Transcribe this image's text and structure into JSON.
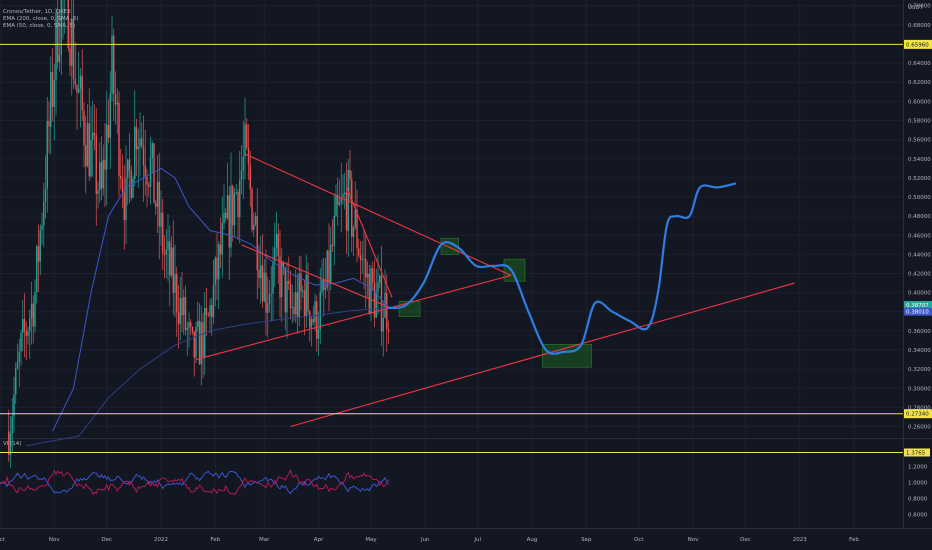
{
  "legend": {
    "title": "Cronos/Tether, 1D, OKEX",
    "ema200": "EMA (200, close, 0, SMA, 5)",
    "ema50": "EMA (50, close, 0, SMA, 5)",
    "vi": "VI (14)"
  },
  "currency": "USDT",
  "colors": {
    "background": "#131722",
    "up": "#26a69a",
    "down": "#ef5350",
    "ema200": "#2f3f86",
    "ema50": "#3d58c4",
    "projection": "#2f7de1",
    "trend": "#f23645",
    "level": "#f2e34a",
    "box": "#1b5e20",
    "vi_plus": "#3b5bdb",
    "vi_minus": "#c2185b"
  },
  "chart_data": [
    {
      "type": "candlestick",
      "x_ticks": [
        "Oct",
        "Nov",
        "Dec",
        "2022",
        "Feb",
        "Mar",
        "Apr",
        "May",
        "Jun",
        "Jul",
        "Aug",
        "Sep",
        "Oct",
        "Nov",
        "Dec",
        "2023",
        "Feb"
      ],
      "y_ticks": [
        "0.70000",
        "0.68000",
        "0.64000",
        "0.62000",
        "0.60000",
        "0.58000",
        "0.56000",
        "0.54000",
        "0.52000",
        "0.50000",
        "0.48000",
        "0.46000",
        "0.44000",
        "0.42000",
        "0.40000",
        "0.38000",
        "0.36000",
        "0.34000",
        "0.32000",
        "0.30000",
        "0.28000",
        "0.26000"
      ],
      "ylim": [
        0.248,
        0.706
      ],
      "levels": [
        {
          "value": 0.6596,
          "label": "0.65960"
        },
        {
          "value": 0.2734,
          "label": "0.27340"
        }
      ],
      "price_badges": [
        {
          "value": 0.38707,
          "label": "0.38707",
          "color": "#26a69a"
        },
        {
          "value": 0.3801,
          "label": "0.38010",
          "color": "#3d58c4"
        }
      ],
      "anchors": [
        {
          "d": 5,
          "p": 0.255
        },
        {
          "d": 12,
          "p": 0.34
        },
        {
          "d": 20,
          "p": 0.4
        },
        {
          "d": 33,
          "p": 0.68
        },
        {
          "d": 38,
          "p": 0.72
        },
        {
          "d": 44,
          "p": 0.61
        },
        {
          "d": 50,
          "p": 0.56
        },
        {
          "d": 58,
          "p": 0.5
        },
        {
          "d": 64,
          "p": 0.63
        },
        {
          "d": 72,
          "p": 0.49
        },
        {
          "d": 78,
          "p": 0.58
        },
        {
          "d": 86,
          "p": 0.53
        },
        {
          "d": 94,
          "p": 0.44
        },
        {
          "d": 104,
          "p": 0.38
        },
        {
          "d": 110,
          "p": 0.335
        },
        {
          "d": 118,
          "p": 0.36
        },
        {
          "d": 126,
          "p": 0.44
        },
        {
          "d": 134,
          "p": 0.5
        },
        {
          "d": 140,
          "p": 0.54
        },
        {
          "d": 146,
          "p": 0.47
        },
        {
          "d": 152,
          "p": 0.4
        },
        {
          "d": 158,
          "p": 0.43
        },
        {
          "d": 166,
          "p": 0.38
        },
        {
          "d": 174,
          "p": 0.4
        },
        {
          "d": 180,
          "p": 0.37
        },
        {
          "d": 186,
          "p": 0.4
        },
        {
          "d": 192,
          "p": 0.47
        },
        {
          "d": 198,
          "p": 0.5
        },
        {
          "d": 204,
          "p": 0.46
        },
        {
          "d": 210,
          "p": 0.41
        },
        {
          "d": 216,
          "p": 0.39
        },
        {
          "d": 222,
          "p": 0.385
        }
      ],
      "ema200": [
        {
          "d": 15,
          "p": 0.24
        },
        {
          "d": 45,
          "p": 0.25
        },
        {
          "d": 62,
          "p": 0.29
        },
        {
          "d": 80,
          "p": 0.32
        },
        {
          "d": 100,
          "p": 0.345
        },
        {
          "d": 120,
          "p": 0.36
        },
        {
          "d": 140,
          "p": 0.367
        },
        {
          "d": 160,
          "p": 0.372
        },
        {
          "d": 180,
          "p": 0.376
        },
        {
          "d": 200,
          "p": 0.381
        },
        {
          "d": 222,
          "p": 0.384
        }
      ],
      "ema50": [
        {
          "d": 30,
          "p": 0.255
        },
        {
          "d": 42,
          "p": 0.3
        },
        {
          "d": 52,
          "p": 0.4
        },
        {
          "d": 62,
          "p": 0.48
        },
        {
          "d": 72,
          "p": 0.51
        },
        {
          "d": 82,
          "p": 0.52
        },
        {
          "d": 92,
          "p": 0.53
        },
        {
          "d": 100,
          "p": 0.52
        },
        {
          "d": 108,
          "p": 0.49
        },
        {
          "d": 120,
          "p": 0.465
        },
        {
          "d": 132,
          "p": 0.46
        },
        {
          "d": 144,
          "p": 0.45
        },
        {
          "d": 156,
          "p": 0.432
        },
        {
          "d": 168,
          "p": 0.418
        },
        {
          "d": 180,
          "p": 0.408
        },
        {
          "d": 192,
          "p": 0.41
        },
        {
          "d": 202,
          "p": 0.415
        },
        {
          "d": 212,
          "p": 0.405
        },
        {
          "d": 222,
          "p": 0.385
        }
      ],
      "trendlines": [
        {
          "from": {
            "d": 112,
            "p": 0.33
          },
          "to": {
            "d": 292,
            "p": 0.418
          }
        },
        {
          "from": {
            "d": 140,
            "p": 0.545
          },
          "to": {
            "d": 292,
            "p": 0.418
          }
        },
        {
          "from": {
            "d": 138,
            "p": 0.45
          },
          "to": {
            "d": 222,
            "p": 0.385
          }
        },
        {
          "from": {
            "d": 198,
            "p": 0.51
          },
          "to": {
            "d": 224,
            "p": 0.395
          }
        },
        {
          "from": {
            "d": 166,
            "p": 0.26
          },
          "to": {
            "d": 454,
            "p": 0.41
          }
        }
      ],
      "projection": [
        {
          "d": 222,
          "p": 0.384
        },
        {
          "d": 232,
          "p": 0.387
        },
        {
          "d": 242,
          "p": 0.41
        },
        {
          "d": 252,
          "p": 0.45
        },
        {
          "d": 262,
          "p": 0.447
        },
        {
          "d": 272,
          "p": 0.428
        },
        {
          "d": 282,
          "p": 0.428
        },
        {
          "d": 292,
          "p": 0.424
        },
        {
          "d": 302,
          "p": 0.38
        },
        {
          "d": 312,
          "p": 0.34
        },
        {
          "d": 322,
          "p": 0.338
        },
        {
          "d": 332,
          "p": 0.345
        },
        {
          "d": 340,
          "p": 0.389
        },
        {
          "d": 350,
          "p": 0.38
        },
        {
          "d": 360,
          "p": 0.37
        },
        {
          "d": 370,
          "p": 0.363
        },
        {
          "d": 376,
          "p": 0.4
        },
        {
          "d": 381,
          "p": 0.47
        },
        {
          "d": 386,
          "p": 0.48
        },
        {
          "d": 394,
          "p": 0.48
        },
        {
          "d": 400,
          "p": 0.51
        },
        {
          "d": 410,
          "p": 0.51
        },
        {
          "d": 420,
          "p": 0.514
        }
      ],
      "boxes": [
        {
          "d1": 228,
          "d2": 240,
          "p1": 0.375,
          "p2": 0.391
        },
        {
          "d1": 252,
          "d2": 262,
          "p1": 0.44,
          "p2": 0.457
        },
        {
          "d1": 288,
          "d2": 300,
          "p1": 0.412,
          "p2": 0.435
        },
        {
          "d1": 310,
          "d2": 338,
          "p1": 0.322,
          "p2": 0.346
        }
      ]
    },
    {
      "type": "line",
      "title": "VI (14)",
      "y_ticks": [
        "1.4000",
        "1.2000",
        "1.0000",
        "0.8000",
        "0.6000"
      ],
      "ylim": [
        0.52,
        1.42
      ],
      "badge": {
        "value": 1.3765,
        "label": "1.3765"
      }
    }
  ]
}
